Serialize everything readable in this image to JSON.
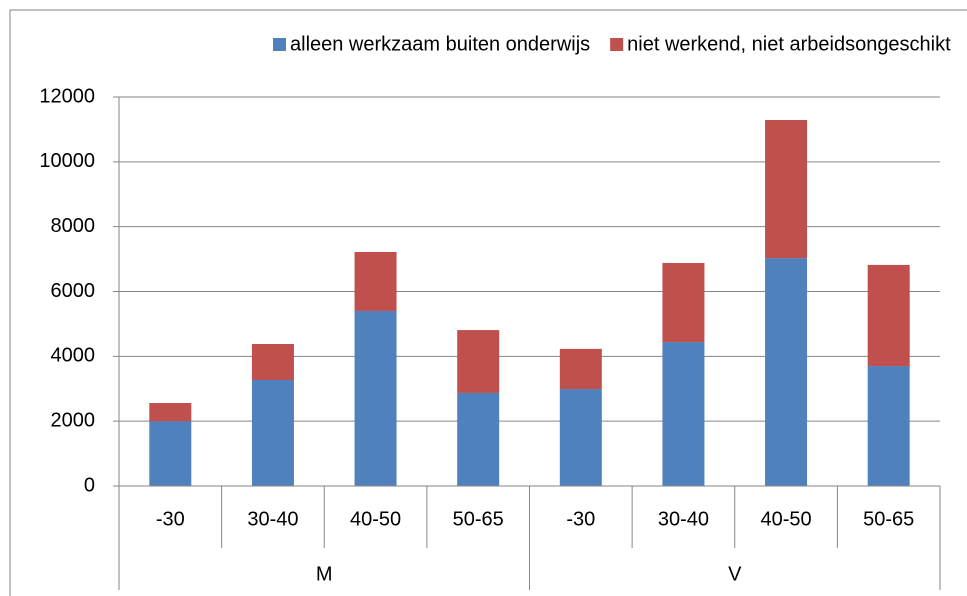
{
  "chart_data": {
    "type": "stacked_bar",
    "categories": [
      "-30",
      "30-40",
      "40-50",
      "50-65",
      "-30",
      "30-40",
      "40-50",
      "50-65"
    ],
    "groups": [
      "M",
      "V"
    ],
    "series": [
      {
        "name": "alleen werkzaam buiten onderwijs",
        "color": "#4f81bd",
        "values": [
          2000,
          3270,
          5400,
          2870,
          2990,
          4440,
          7030,
          3700
        ]
      },
      {
        "name": "niet werkend, niet arbeidsongeschikt",
        "color": "#c0504d",
        "values": [
          560,
          1110,
          1820,
          1940,
          1240,
          2440,
          4260,
          3120
        ]
      }
    ],
    "ylim": [
      0,
      12000
    ],
    "yticks": [
      0,
      2000,
      4000,
      6000,
      8000,
      10000,
      12000
    ],
    "grid": true,
    "legend": "top"
  }
}
